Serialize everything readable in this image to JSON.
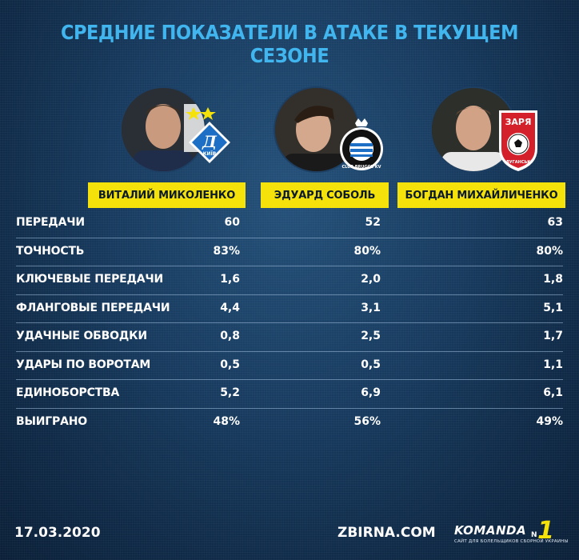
{
  "title": "СРЕДНИЕ ПОКАЗАТЕЛИ В АТАКЕ В ТЕКУЩЕМ СЕЗОНЕ",
  "players": [
    {
      "name": "ВИТАЛИЙ МИКОЛЕНКО",
      "club_badge_text": "КИЇВ",
      "club": "dynamo-kyiv"
    },
    {
      "name": "ЭДУАРД СОБОЛЬ",
      "club_badge_text": "CLUB BRUGGE KV",
      "club": "club-brugge"
    },
    {
      "name": "БОГДАН МИХАЙЛИЧЕНКО",
      "club_badge_text": "ЗАРЯ",
      "club_badge_sub": "ЛУГАНСЬК",
      "club": "zorya-luhansk"
    }
  ],
  "stats": [
    {
      "label": "ПЕРЕДАЧИ",
      "values": [
        "60",
        "52",
        "63"
      ]
    },
    {
      "label": "ТОЧНОСТЬ",
      "values": [
        "83%",
        "80%",
        "80%"
      ]
    },
    {
      "label": "КЛЮЧЕВЫЕ ПЕРЕДАЧИ",
      "values": [
        "1,6",
        "2,0",
        "1,8"
      ]
    },
    {
      "label": "ФЛАНГОВЫЕ ПЕРЕДАЧИ",
      "values": [
        "4,4",
        "3,1",
        "5,1"
      ]
    },
    {
      "label": "УДАЧНЫЕ ОБВОДКИ",
      "values": [
        "0,8",
        "2,5",
        "1,7"
      ]
    },
    {
      "label": "УДАРЫ ПО ВОРОТАМ",
      "values": [
        "0,5",
        "0,5",
        "1,1"
      ]
    },
    {
      "label": "ЕДИНОБОРСТВА",
      "values": [
        "5,2",
        "6,9",
        "6,1"
      ]
    },
    {
      "label": "ВЫИГРАНО",
      "values": [
        "48%",
        "56%",
        "49%"
      ]
    }
  ],
  "footer": {
    "date": "17.03.2020",
    "site": "ZBIRNA.COM",
    "brand": "KOMANDA",
    "brand_num": "1",
    "brand_n": "N",
    "brand_sub": "САЙТ ДЛЯ БОЛЕЛЬЩИКОВ СБОРНОЙ УКРАИНЫ"
  },
  "colors": {
    "title": "#41b5ee",
    "name_box": "#f5e20a",
    "dynamo": "#1c6fc4",
    "brugge": "#111111",
    "zorya": "#d4202a"
  }
}
